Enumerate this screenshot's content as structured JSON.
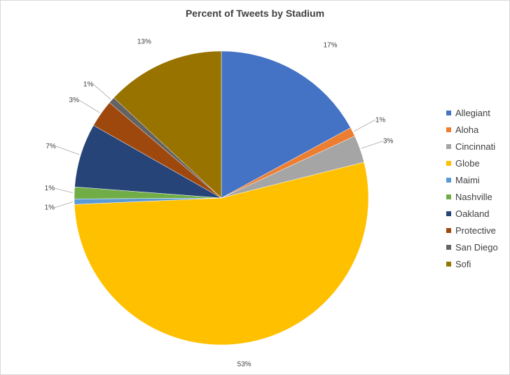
{
  "chart_data": {
    "type": "pie",
    "title": "Percent of Tweets by Stadium",
    "legend_position": "right",
    "slices": [
      {
        "name": "Allegiant",
        "value": 17,
        "label": "17%",
        "color": "#4472c4"
      },
      {
        "name": "Aloha",
        "value": 1,
        "label": "1%",
        "color": "#ed7d31"
      },
      {
        "name": "Cincinnati",
        "value": 3,
        "label": "3%",
        "color": "#a5a5a5"
      },
      {
        "name": "Globe",
        "value": 53,
        "label": "53%",
        "color": "#ffc000"
      },
      {
        "name": "Maimi",
        "value": 0.6,
        "label": "1%",
        "color": "#5b9bd5"
      },
      {
        "name": "Nashville",
        "value": 1.3,
        "label": "1%",
        "color": "#70ad47"
      },
      {
        "name": "Oakland",
        "value": 7,
        "label": "7%",
        "color": "#264478"
      },
      {
        "name": "Protective",
        "value": 3,
        "label": "3%",
        "color": "#9e480e"
      },
      {
        "name": "San Diego",
        "value": 0.7,
        "label": "1%",
        "color": "#636363"
      },
      {
        "name": "Sofi",
        "value": 13,
        "label": "13%",
        "color": "#997300"
      }
    ]
  }
}
